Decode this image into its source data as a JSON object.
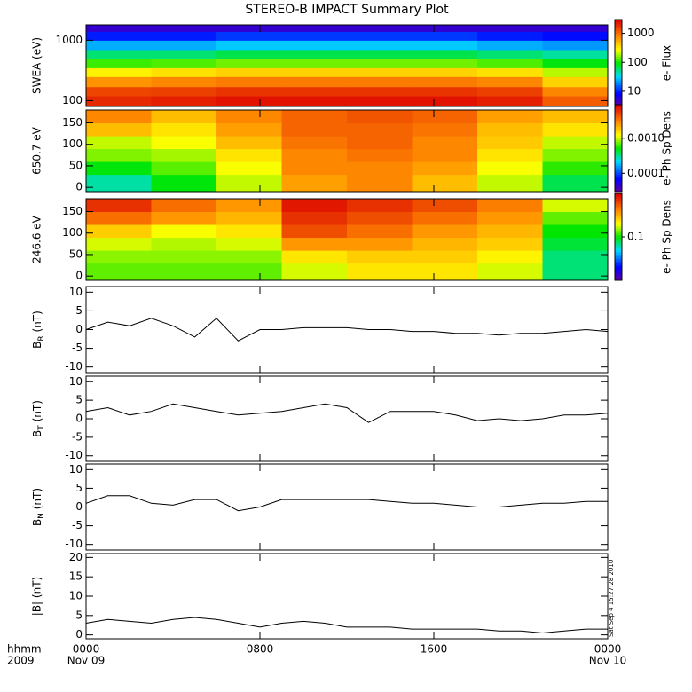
{
  "chart_data": [
    {
      "type": "heatmap",
      "title": "STEREO-B IMPACT Summary Plot",
      "ylabel": "SWEA (eV)",
      "log_y": true,
      "ylim": [
        80,
        1800
      ],
      "yticks": [
        100,
        1000
      ],
      "xlim": [
        0,
        24
      ],
      "x": [
        0,
        3,
        6,
        9,
        12,
        15,
        18,
        21,
        24
      ],
      "y": [
        80,
        120,
        170,
        250,
        350,
        500,
        700,
        1000,
        1400,
        1800
      ],
      "z": [
        [
          2000,
          2200,
          2500,
          2500,
          2500,
          2500,
          2200,
          1200
        ],
        [
          1500,
          1600,
          1800,
          1800,
          1800,
          1800,
          1600,
          800
        ],
        [
          700,
          800,
          900,
          900,
          900,
          900,
          800,
          400
        ],
        [
          300,
          350,
          400,
          400,
          400,
          400,
          350,
          200
        ],
        [
          120,
          130,
          150,
          150,
          150,
          150,
          130,
          90
        ],
        [
          60,
          60,
          70,
          70,
          70,
          70,
          60,
          50
        ],
        [
          25,
          25,
          30,
          30,
          30,
          30,
          25,
          22
        ],
        [
          10,
          10,
          12,
          12,
          12,
          12,
          10,
          9
        ],
        [
          5,
          5,
          5,
          5,
          5,
          5,
          5,
          5
        ]
      ],
      "colorscale": "rainbow",
      "log_color": true,
      "clim": [
        3,
        3000
      ],
      "cticks": [
        10,
        100,
        1000
      ],
      "clabel": "e- Flux"
    },
    {
      "type": "heatmap",
      "ylabel": "650.7 eV",
      "log_y": false,
      "ylim": [
        -10,
        180
      ],
      "yticks": [
        0,
        50,
        100,
        150
      ],
      "xlim": [
        0,
        24
      ],
      "x": [
        0,
        3,
        6,
        9,
        12,
        15,
        18,
        21,
        24
      ],
      "y": [
        -10,
        30,
        60,
        90,
        120,
        150,
        180
      ],
      "z": [
        [
          0.0003,
          0.0005,
          0.001,
          0.0025,
          0.003,
          0.002,
          0.001,
          0.0004
        ],
        [
          0.0005,
          0.0007,
          0.0012,
          0.003,
          0.003,
          0.0025,
          0.0012,
          0.0006
        ],
        [
          0.0008,
          0.0009,
          0.0015,
          0.003,
          0.0035,
          0.003,
          0.0015,
          0.0008
        ],
        [
          0.001,
          0.0012,
          0.002,
          0.0035,
          0.004,
          0.003,
          0.0018,
          0.001
        ],
        [
          0.002,
          0.0015,
          0.0025,
          0.004,
          0.004,
          0.0035,
          0.002,
          0.0015
        ],
        [
          0.003,
          0.002,
          0.003,
          0.004,
          0.0045,
          0.004,
          0.0025,
          0.002
        ]
      ],
      "colorscale": "rainbow",
      "log_color": true,
      "clim": [
        3e-05,
        0.009
      ],
      "cticks": [
        0.0001,
        {
          "value": 0.001,
          "label": "0.0010"
        }
      ],
      "clabel": "e- Ph Sp Dens"
    },
    {
      "type": "heatmap",
      "ylabel": "246.6 eV",
      "log_y": false,
      "ylim": [
        -10,
        180
      ],
      "yticks": [
        0,
        50,
        100,
        150
      ],
      "xlim": [
        0,
        24
      ],
      "x": [
        0,
        3,
        6,
        9,
        12,
        15,
        18,
        21,
        24
      ],
      "y": [
        -10,
        30,
        60,
        90,
        120,
        150,
        180
      ],
      "z": [
        [
          0.12,
          0.12,
          0.12,
          0.15,
          0.18,
          0.18,
          0.15,
          0.08
        ],
        [
          0.13,
          0.13,
          0.13,
          0.18,
          0.2,
          0.2,
          0.17,
          0.08
        ],
        [
          0.15,
          0.14,
          0.15,
          0.25,
          0.25,
          0.22,
          0.2,
          0.09
        ],
        [
          0.2,
          0.16,
          0.18,
          0.35,
          0.3,
          0.25,
          0.22,
          0.1
        ],
        [
          0.3,
          0.25,
          0.22,
          0.4,
          0.35,
          0.3,
          0.25,
          0.12
        ],
        [
          0.4,
          0.3,
          0.25,
          0.45,
          0.4,
          0.35,
          0.28,
          0.15
        ]
      ],
      "colorscale": "rainbow",
      "log_color": true,
      "clim": [
        0.02,
        0.5
      ],
      "cticks": [
        0.1
      ],
      "clabel": "e- Ph Sp Dens"
    },
    {
      "type": "line",
      "ylabel": [
        "B",
        "R",
        " (nT)"
      ],
      "ylim": [
        -11.5,
        11.5
      ],
      "yticks": [
        -10,
        -5,
        0,
        5,
        10
      ],
      "xlim": [
        0,
        24
      ],
      "color": "#000000",
      "x": [
        0,
        1,
        2,
        3,
        4,
        5,
        6,
        7,
        8,
        9,
        10,
        11,
        12,
        13,
        14,
        15,
        16,
        17,
        18,
        19,
        20,
        21,
        22,
        23,
        24
      ],
      "values": [
        0,
        2,
        1,
        3,
        1,
        -2,
        3,
        -3,
        0,
        0,
        0.5,
        0.5,
        0.5,
        0,
        0,
        -0.5,
        -0.5,
        -1,
        -1,
        -1.5,
        -1,
        -1,
        -0.5,
        0,
        -0.5
      ]
    },
    {
      "type": "line",
      "ylabel": [
        "B",
        "T",
        " (nT)"
      ],
      "ylim": [
        -11.5,
        11.5
      ],
      "yticks": [
        -10,
        -5,
        0,
        5,
        10
      ],
      "xlim": [
        0,
        24
      ],
      "color": "#000000",
      "x": [
        0,
        1,
        2,
        3,
        4,
        5,
        6,
        7,
        8,
        9,
        10,
        11,
        12,
        13,
        14,
        15,
        16,
        17,
        18,
        19,
        20,
        21,
        22,
        23,
        24
      ],
      "values": [
        2,
        3,
        1,
        2,
        4,
        3,
        2,
        1,
        1.5,
        2,
        3,
        4,
        3,
        -1,
        2,
        2,
        2,
        1,
        -0.5,
        0,
        -0.5,
        0,
        1,
        1,
        1.5
      ]
    },
    {
      "type": "line",
      "ylabel": [
        "B",
        "N",
        " (nT)"
      ],
      "ylim": [
        -11.5,
        11.5
      ],
      "yticks": [
        -10,
        -5,
        0,
        5,
        10
      ],
      "xlim": [
        0,
        24
      ],
      "color": "#000000",
      "x": [
        0,
        1,
        2,
        3,
        4,
        5,
        6,
        7,
        8,
        9,
        10,
        11,
        12,
        13,
        14,
        15,
        16,
        17,
        18,
        19,
        20,
        21,
        22,
        23,
        24
      ],
      "values": [
        1,
        3,
        3,
        1,
        0.5,
        2,
        2,
        -1,
        0,
        2,
        2,
        2,
        2,
        2,
        1.5,
        1,
        1,
        0.5,
        0,
        0,
        0.5,
        1,
        1,
        1.5,
        1.5
      ]
    },
    {
      "type": "line",
      "ylabel": "|B| (nT)",
      "ylim": [
        -1,
        21
      ],
      "yticks": [
        0,
        5,
        10,
        15,
        20
      ],
      "xlim": [
        0,
        24
      ],
      "color": "#000000",
      "x": [
        0,
        1,
        2,
        3,
        4,
        5,
        6,
        7,
        8,
        9,
        10,
        11,
        12,
        13,
        14,
        15,
        16,
        17,
        18,
        19,
        20,
        21,
        22,
        23,
        24
      ],
      "values": [
        3,
        4,
        3.5,
        3,
        4,
        4.5,
        4,
        3,
        2,
        3,
        3.5,
        3,
        2,
        2,
        2,
        1.5,
        1.5,
        1.5,
        1.5,
        1,
        1,
        0.5,
        1,
        1.5,
        1.5
      ],
      "xticks": [
        {
          "value": 0,
          "label": "0000"
        },
        {
          "value": 8,
          "label": "0800"
        },
        {
          "value": 16,
          "label": "1600"
        },
        {
          "value": 24,
          "label": "0000"
        }
      ],
      "xtick_dates": [
        "Nov 09",
        null,
        null,
        "Nov 10"
      ],
      "xlabel": "hhmm",
      "xlabel2": "2009",
      "stamp": "Sat Sep  4 15:27:28 2010"
    }
  ]
}
